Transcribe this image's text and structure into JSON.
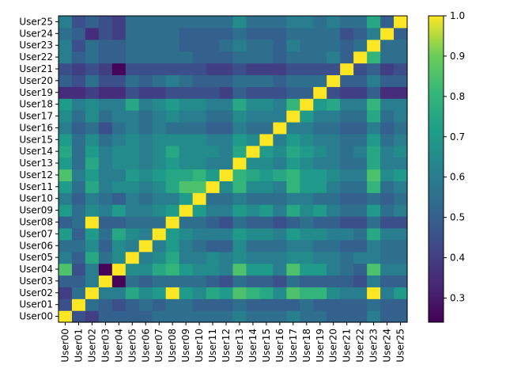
{
  "chart_data": {
    "type": "heatmap",
    "title": "",
    "xlabel": "",
    "ylabel": "",
    "labels": [
      "User00",
      "User01",
      "User02",
      "User03",
      "User04",
      "User05",
      "User06",
      "User07",
      "User08",
      "User09",
      "User10",
      "User11",
      "User12",
      "User13",
      "User14",
      "User15",
      "User16",
      "User17",
      "User18",
      "User19",
      "User20",
      "User21",
      "User22",
      "User23",
      "User24",
      "User25"
    ],
    "values": [
      [
        1.0,
        0.45,
        0.4,
        0.5,
        0.5,
        0.5,
        0.5,
        0.55,
        0.55,
        0.55,
        0.55,
        0.55,
        0.55,
        0.6,
        0.55,
        0.55,
        0.55,
        0.6,
        0.55,
        0.55,
        0.5,
        0.5,
        0.5,
        0.6,
        0.5,
        0.5
      ],
      [
        0.45,
        1.0,
        0.55,
        0.5,
        0.45,
        0.5,
        0.55,
        0.5,
        0.55,
        0.55,
        0.5,
        0.5,
        0.5,
        0.55,
        0.5,
        0.5,
        0.5,
        0.5,
        0.55,
        0.5,
        0.5,
        0.5,
        0.5,
        0.55,
        0.5,
        0.5
      ],
      [
        0.4,
        0.55,
        1.0,
        0.6,
        0.6,
        0.75,
        0.65,
        0.7,
        1.0,
        0.7,
        0.65,
        0.75,
        0.7,
        0.85,
        0.8,
        0.75,
        0.65,
        0.85,
        0.8,
        0.8,
        0.65,
        0.6,
        0.6,
        1.0,
        0.6,
        0.7
      ],
      [
        0.5,
        0.5,
        0.6,
        1.0,
        0.25,
        0.55,
        0.5,
        0.55,
        0.55,
        0.55,
        0.55,
        0.5,
        0.45,
        0.55,
        0.5,
        0.5,
        0.45,
        0.55,
        0.5,
        0.5,
        0.5,
        0.5,
        0.45,
        0.6,
        0.5,
        0.5
      ],
      [
        0.85,
        0.45,
        0.6,
        0.25,
        1.0,
        0.65,
        0.65,
        0.75,
        0.8,
        0.7,
        0.65,
        0.65,
        0.6,
        0.85,
        0.7,
        0.7,
        0.6,
        0.85,
        0.7,
        0.7,
        0.6,
        0.55,
        0.5,
        0.85,
        0.6,
        0.6
      ],
      [
        0.6,
        0.5,
        0.75,
        0.55,
        0.65,
        1.0,
        0.6,
        0.65,
        0.75,
        0.6,
        0.6,
        0.65,
        0.6,
        0.65,
        0.6,
        0.6,
        0.6,
        0.65,
        0.65,
        0.6,
        0.6,
        0.55,
        0.6,
        0.6,
        0.55,
        0.55
      ],
      [
        0.55,
        0.55,
        0.65,
        0.5,
        0.65,
        0.6,
        1.0,
        0.6,
        0.7,
        0.6,
        0.55,
        0.5,
        0.5,
        0.65,
        0.55,
        0.55,
        0.55,
        0.6,
        0.6,
        0.55,
        0.55,
        0.5,
        0.5,
        0.6,
        0.55,
        0.55
      ],
      [
        0.7,
        0.5,
        0.7,
        0.55,
        0.75,
        0.65,
        0.6,
        1.0,
        0.7,
        0.65,
        0.6,
        0.6,
        0.6,
        0.7,
        0.65,
        0.65,
        0.6,
        0.7,
        0.65,
        0.65,
        0.6,
        0.6,
        0.55,
        0.75,
        0.6,
        0.6
      ],
      [
        0.5,
        0.55,
        1.0,
        0.5,
        0.5,
        0.55,
        0.55,
        0.55,
        1.0,
        0.55,
        0.55,
        0.5,
        0.45,
        0.55,
        0.5,
        0.5,
        0.45,
        0.5,
        0.55,
        0.5,
        0.5,
        0.45,
        0.45,
        0.55,
        0.45,
        0.45
      ],
      [
        0.7,
        0.55,
        0.65,
        0.6,
        0.7,
        0.6,
        0.6,
        0.65,
        0.7,
        1.0,
        0.7,
        0.6,
        0.6,
        0.7,
        0.65,
        0.7,
        0.6,
        0.75,
        0.65,
        0.7,
        0.6,
        0.55,
        0.55,
        0.7,
        0.55,
        0.6
      ],
      [
        0.6,
        0.5,
        0.6,
        0.55,
        0.5,
        0.6,
        0.55,
        0.6,
        0.6,
        0.7,
        1.0,
        0.55,
        0.55,
        0.6,
        0.55,
        0.55,
        0.55,
        0.6,
        0.6,
        0.55,
        0.55,
        0.5,
        0.5,
        0.55,
        0.5,
        0.55
      ],
      [
        0.7,
        0.55,
        0.75,
        0.6,
        0.65,
        0.65,
        0.6,
        0.65,
        0.75,
        0.85,
        0.85,
        1.0,
        0.65,
        0.8,
        0.65,
        0.65,
        0.6,
        0.8,
        0.7,
        0.7,
        0.6,
        0.55,
        0.55,
        0.8,
        0.55,
        0.6
      ],
      [
        0.85,
        0.6,
        0.7,
        0.6,
        0.6,
        0.7,
        0.65,
        0.7,
        0.75,
        0.75,
        0.8,
        0.7,
        1.0,
        0.8,
        0.75,
        0.7,
        0.75,
        0.8,
        0.7,
        0.7,
        0.65,
        0.6,
        0.6,
        0.85,
        0.65,
        0.7
      ],
      [
        0.7,
        0.55,
        0.75,
        0.6,
        0.65,
        0.65,
        0.6,
        0.65,
        0.7,
        0.65,
        0.65,
        0.6,
        0.6,
        1.0,
        0.65,
        0.65,
        0.6,
        0.7,
        0.65,
        0.6,
        0.6,
        0.55,
        0.55,
        0.75,
        0.6,
        0.6
      ],
      [
        0.75,
        0.55,
        0.7,
        0.6,
        0.65,
        0.65,
        0.6,
        0.65,
        0.75,
        0.65,
        0.65,
        0.65,
        0.6,
        0.75,
        1.0,
        0.7,
        0.65,
        0.75,
        0.7,
        0.65,
        0.6,
        0.55,
        0.6,
        0.75,
        0.6,
        0.65
      ],
      [
        0.7,
        0.55,
        0.65,
        0.55,
        0.6,
        0.65,
        0.6,
        0.65,
        0.65,
        0.65,
        0.65,
        0.6,
        0.6,
        0.7,
        0.65,
        1.0,
        0.6,
        0.7,
        0.65,
        0.6,
        0.6,
        0.55,
        0.55,
        0.7,
        0.55,
        0.6
      ],
      [
        0.6,
        0.5,
        0.55,
        0.45,
        0.55,
        0.6,
        0.55,
        0.6,
        0.55,
        0.55,
        0.55,
        0.5,
        0.5,
        0.6,
        0.55,
        0.55,
        1.0,
        0.6,
        0.6,
        0.55,
        0.55,
        0.5,
        0.5,
        0.6,
        0.5,
        0.55
      ],
      [
        0.65,
        0.55,
        0.65,
        0.55,
        0.6,
        0.6,
        0.55,
        0.6,
        0.65,
        0.6,
        0.6,
        0.55,
        0.55,
        0.65,
        0.6,
        0.6,
        0.6,
        1.0,
        0.7,
        0.6,
        0.6,
        0.55,
        0.55,
        0.75,
        0.55,
        0.6
      ],
      [
        0.7,
        0.6,
        0.65,
        0.6,
        0.6,
        0.75,
        0.6,
        0.65,
        0.7,
        0.65,
        0.65,
        0.6,
        0.6,
        0.75,
        0.65,
        0.65,
        0.6,
        0.8,
        1.0,
        0.7,
        0.75,
        0.6,
        0.6,
        0.8,
        0.6,
        0.6
      ],
      [
        0.35,
        0.35,
        0.4,
        0.35,
        0.35,
        0.45,
        0.4,
        0.4,
        0.45,
        0.45,
        0.45,
        0.45,
        0.4,
        0.5,
        0.45,
        0.45,
        0.45,
        0.5,
        0.5,
        1.0,
        0.45,
        0.4,
        0.4,
        0.5,
        0.35,
        0.35
      ],
      [
        0.5,
        0.45,
        0.55,
        0.45,
        0.45,
        0.55,
        0.5,
        0.55,
        0.6,
        0.55,
        0.5,
        0.5,
        0.5,
        0.55,
        0.55,
        0.55,
        0.5,
        0.55,
        0.55,
        0.55,
        1.0,
        0.5,
        0.5,
        0.6,
        0.5,
        0.5
      ],
      [
        0.45,
        0.4,
        0.45,
        0.4,
        0.25,
        0.45,
        0.45,
        0.45,
        0.45,
        0.45,
        0.45,
        0.4,
        0.4,
        0.45,
        0.4,
        0.4,
        0.4,
        0.45,
        0.45,
        0.45,
        0.45,
        1.0,
        0.45,
        0.5,
        0.4,
        0.45
      ],
      [
        0.6,
        0.5,
        0.55,
        0.5,
        0.5,
        0.55,
        0.55,
        0.55,
        0.55,
        0.55,
        0.5,
        0.5,
        0.5,
        0.55,
        0.55,
        0.55,
        0.5,
        0.55,
        0.55,
        0.55,
        0.6,
        0.5,
        1.0,
        0.8,
        0.55,
        0.55
      ],
      [
        0.6,
        0.45,
        0.55,
        0.5,
        0.5,
        0.55,
        0.55,
        0.55,
        0.55,
        0.5,
        0.5,
        0.5,
        0.55,
        0.6,
        0.55,
        0.55,
        0.5,
        0.6,
        0.55,
        0.55,
        0.55,
        0.5,
        0.55,
        1.0,
        0.55,
        0.55
      ],
      [
        0.55,
        0.5,
        0.35,
        0.45,
        0.4,
        0.55,
        0.55,
        0.55,
        0.55,
        0.5,
        0.5,
        0.5,
        0.5,
        0.55,
        0.5,
        0.5,
        0.5,
        0.55,
        0.55,
        0.55,
        0.55,
        0.45,
        0.5,
        0.6,
        1.0,
        0.5
      ],
      [
        0.6,
        0.45,
        0.5,
        0.45,
        0.4,
        0.55,
        0.55,
        0.55,
        0.55,
        0.55,
        0.55,
        0.55,
        0.55,
        0.65,
        0.55,
        0.55,
        0.55,
        0.6,
        0.6,
        0.55,
        0.6,
        0.55,
        0.55,
        0.75,
        0.5,
        1.0
      ]
    ],
    "colorbar": {
      "min": 0.24,
      "max": 1.0,
      "ticks": [
        "0.3",
        "0.4",
        "0.5",
        "0.6",
        "0.7",
        "0.8",
        "0.9",
        "1.0"
      ],
      "colormap": "viridis"
    },
    "grid": false
  }
}
